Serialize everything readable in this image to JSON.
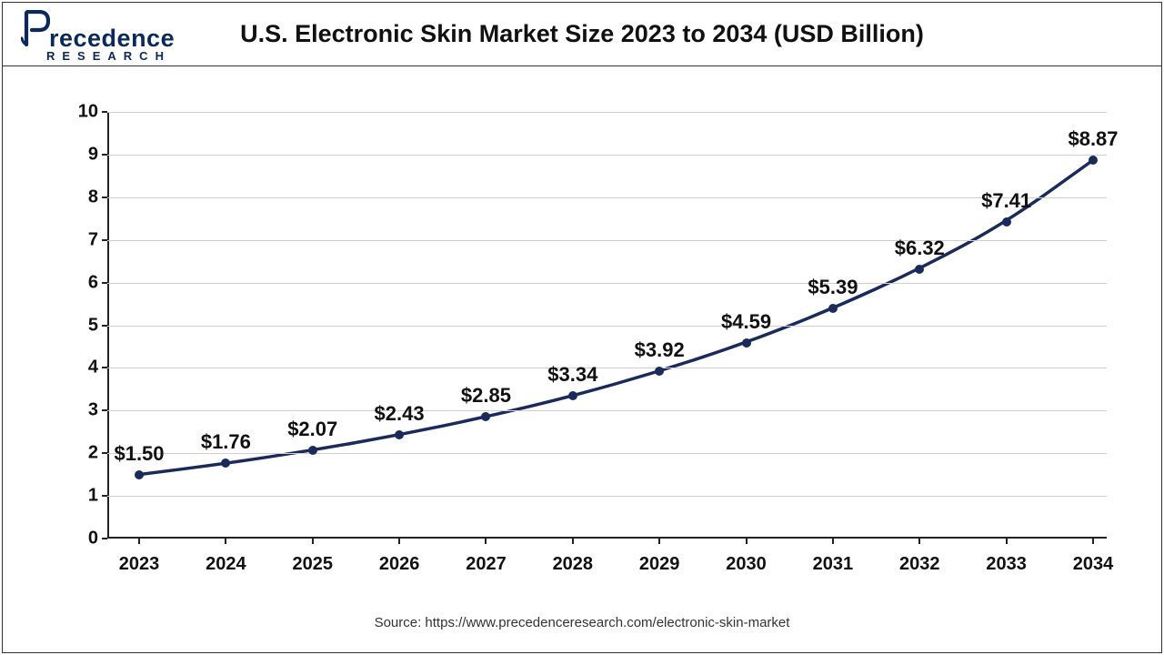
{
  "logo": {
    "brand": "recedence",
    "sub": "RESEARCH",
    "color": "#0b2a5b"
  },
  "chart": {
    "type": "line",
    "title": "U.S. Electronic Skin Market Size 2023 to 2034 (USD Billion)",
    "source": "Source: https://www.precedenceresearch.com/electronic-skin-market",
    "categories": [
      "2023",
      "2024",
      "2025",
      "2026",
      "2027",
      "2028",
      "2029",
      "2030",
      "2031",
      "2032",
      "2033",
      "2034"
    ],
    "values": [
      1.5,
      1.76,
      2.07,
      2.43,
      2.85,
      3.34,
      3.92,
      4.59,
      5.39,
      6.32,
      7.41,
      8.87
    ],
    "value_labels": [
      "$1.50",
      "$1.76",
      "$2.07",
      "$2.43",
      "$2.85",
      "$3.34",
      "$3.92",
      "$4.59",
      "$5.39",
      "$6.32",
      "$7.41",
      "$8.87"
    ],
    "ylim": [
      0,
      10
    ],
    "ytick_step": 1,
    "y_ticks": [
      "0",
      "1",
      "2",
      "3",
      "4",
      "5",
      "6",
      "7",
      "8",
      "9",
      "10"
    ],
    "line_color": "#1a2a5b",
    "line_width": 3.5,
    "marker_color": "#1a2a5b",
    "marker_size": 10,
    "background_color": "#ffffff",
    "grid_color": "#cfcfcf",
    "axis_color": "#222222",
    "title_fontsize": 27,
    "tick_fontsize": 20,
    "datalabel_fontsize": 22,
    "source_fontsize": 15,
    "font_family": "Arial"
  }
}
